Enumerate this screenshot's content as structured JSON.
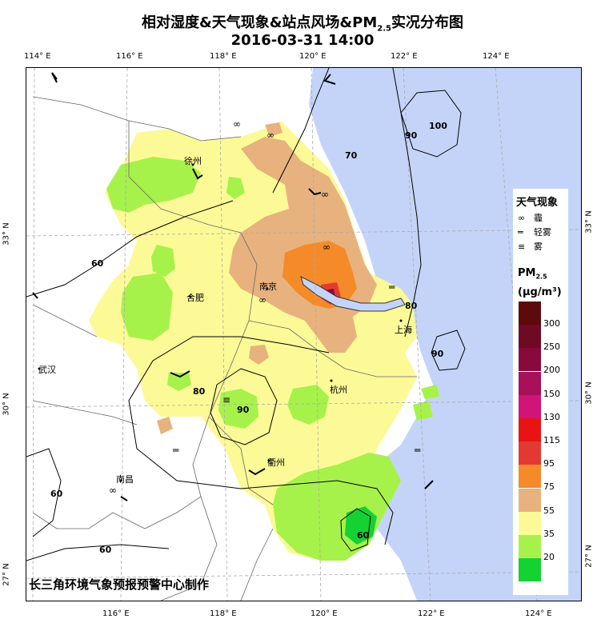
{
  "title_line1": "相对湿度&天气现象&站点风场&PM",
  "title_sub": "2.5",
  "title_tail": "实况分布图",
  "datetime": "2016-03-31 14:00",
  "credit": "长三角环境气象预报预警中心制作",
  "axes": {
    "top_lon": [
      "114° E",
      "116° E",
      "118° E",
      "120° E",
      "122° E",
      "124° E"
    ],
    "bottom_lon": [
      "116° E",
      "118° E",
      "120° E",
      "122° E",
      "124° E"
    ],
    "left_lat": [
      "33° N",
      "30° N",
      "27° N"
    ],
    "right_lat": [
      "33° N",
      "30° N",
      "27° N"
    ]
  },
  "cities": [
    "徐州",
    "合肥",
    "南京",
    "上海",
    "武汉",
    "杭州",
    "衢州",
    "南昌"
  ],
  "contour_labels": [
    "60",
    "70",
    "80",
    "90",
    "100",
    "90",
    "80",
    "90",
    "60",
    "60",
    "60"
  ],
  "legend": {
    "weather_title": "天气现象",
    "weather_items": [
      {
        "symbol": "∞",
        "label": "霾"
      },
      {
        "symbol": "═",
        "label": "轻雾"
      },
      {
        "symbol": "≡",
        "label": "雾"
      }
    ],
    "pm_title": "PM",
    "pm_sub": "2.5",
    "pm_unit": "(μg/m³)",
    "scale": [
      {
        "label": "300",
        "color": "#5c0a0a"
      },
      {
        "label": "250",
        "color": "#6e0a24"
      },
      {
        "label": "200",
        "color": "#880a3c"
      },
      {
        "label": "150",
        "color": "#a8105a"
      },
      {
        "label": "130",
        "color": "#d01478"
      },
      {
        "label": "115",
        "color": "#e81414"
      },
      {
        "label": "95",
        "color": "#e23a32"
      },
      {
        "label": "75",
        "color": "#f58a28"
      },
      {
        "label": "55",
        "color": "#e7b27e"
      },
      {
        "label": "35",
        "color": "#fcfa96"
      },
      {
        "label": "20",
        "color": "#a6f24a"
      },
      {
        "label": "",
        "color": "#14d232"
      }
    ]
  },
  "colors": {
    "sea": "#c4d4f9",
    "land_light": "#fcfa96",
    "green": "#a6f24a",
    "orange_tan": "#e7b27e"
  }
}
